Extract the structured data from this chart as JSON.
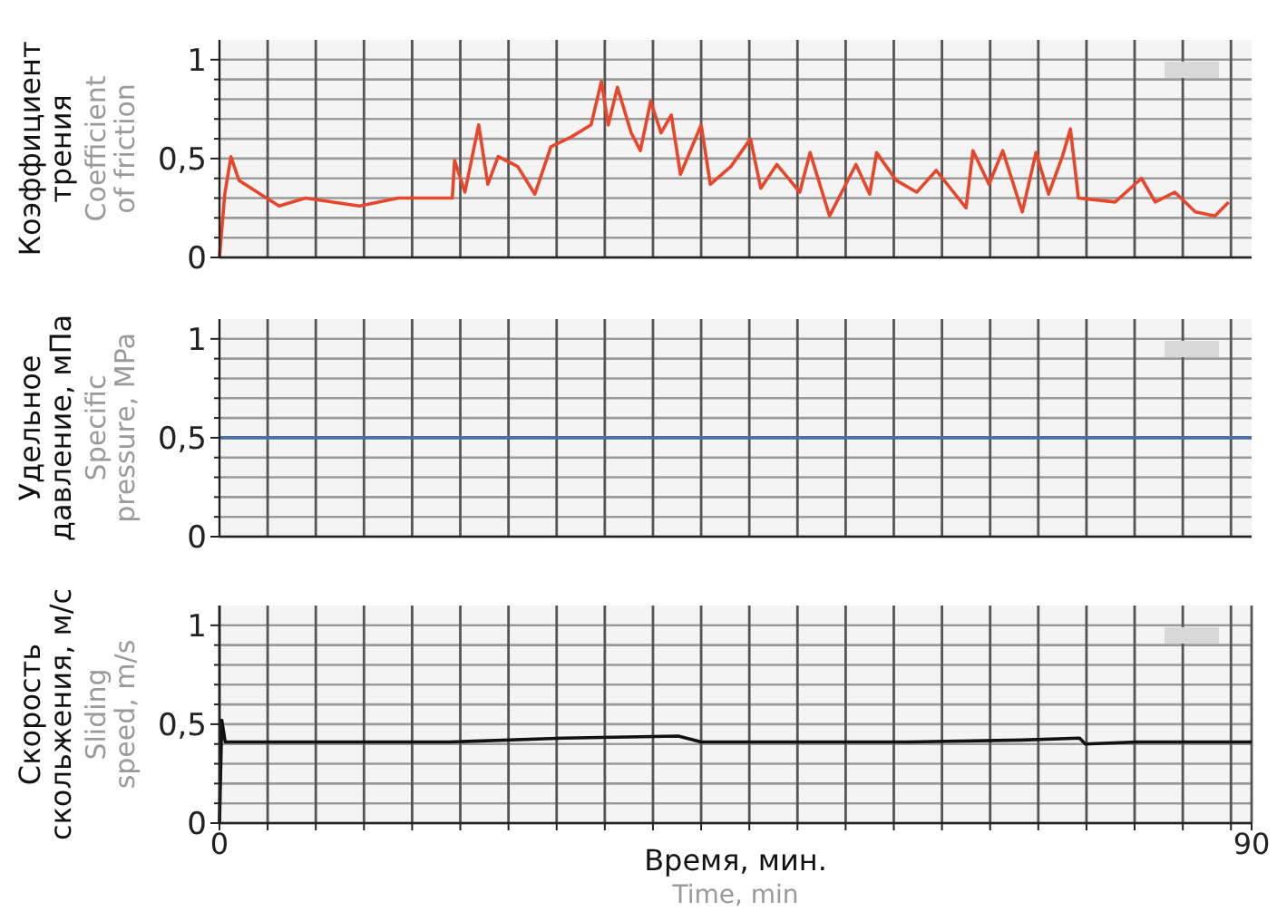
{
  "chart_data": [
    {
      "type": "line",
      "ylabel": "Коэффициент трения",
      "annotations": [
        "Coefficient of friction"
      ],
      "xlim": [
        0,
        90
      ],
      "ylim": [
        0,
        1.1
      ],
      "tick_labels": "y",
      "grid": true,
      "xticks": [
        {
          "value": 4.2,
          "label": null
        },
        {
          "value": 8.4,
          "label": null
        },
        {
          "value": 12.6,
          "label": null
        },
        {
          "value": 16.8,
          "label": null
        },
        {
          "value": 21,
          "label": null
        },
        {
          "value": 25.2,
          "label": null
        },
        {
          "value": 29.4,
          "label": null
        },
        {
          "value": 33.6,
          "label": null
        },
        {
          "value": 37.8,
          "label": null
        },
        {
          "value": 42,
          "label": null
        },
        {
          "value": 46.2,
          "label": null
        },
        {
          "value": 50.4,
          "label": null
        },
        {
          "value": 54.6,
          "label": null
        },
        {
          "value": 58.8,
          "label": null
        },
        {
          "value": 63,
          "label": null
        },
        {
          "value": 67.2,
          "label": null
        },
        {
          "value": 71.4,
          "label": null
        },
        {
          "value": 75.6,
          "label": null
        },
        {
          "value": 79.8,
          "label": null
        },
        {
          "value": 84,
          "label": null
        },
        {
          "value": 88.2,
          "label": null
        }
      ],
      "yticks": [
        {
          "value": 0,
          "label": "0"
        },
        {
          "value": 0.1,
          "label": null
        },
        {
          "value": 0.2,
          "label": null
        },
        {
          "value": 0.3,
          "label": null
        },
        {
          "value": 0.4,
          "label": null
        },
        {
          "value": 0.5,
          "label": "0,5"
        },
        {
          "value": 0.6,
          "label": null
        },
        {
          "value": 0.7,
          "label": null
        },
        {
          "value": 0.8,
          "label": null
        },
        {
          "value": 0.9,
          "label": null
        },
        {
          "value": 1,
          "label": "1"
        }
      ],
      "series": [
        {
          "color": "#e8462a",
          "x": [
            0,
            0.46,
            1.0,
            1.7,
            4.1,
            5.2,
            7.5,
            12.2,
            15.6,
            20.3,
            20.5,
            21.4,
            22.6,
            23.4,
            24.3,
            26.0,
            27.5,
            28.9,
            30.7,
            32.4,
            33.3,
            33.9,
            34.7,
            35.9,
            36.7,
            37.6,
            38.5,
            39.4,
            40.2,
            42.0,
            42.8,
            44.6,
            46.3,
            47.2,
            48.6,
            50.6,
            51.5,
            53.2,
            55.5,
            56.7,
            57.3,
            59.0,
            60.8,
            62.5,
            65.1,
            65.7,
            67.1,
            68.3,
            70.0,
            71.2,
            72.3,
            73.5,
            74.2,
            74.9,
            78.1,
            80.4,
            81.6,
            83.3,
            85.1,
            86.8,
            88.0
          ],
          "values": [
            0,
            0.32,
            0.51,
            0.39,
            0.3,
            0.26,
            0.3,
            0.26,
            0.3,
            0.3,
            0.49,
            0.33,
            0.67,
            0.37,
            0.51,
            0.46,
            0.32,
            0.56,
            0.61,
            0.67,
            0.89,
            0.67,
            0.86,
            0.63,
            0.54,
            0.79,
            0.63,
            0.72,
            0.42,
            0.67,
            0.37,
            0.46,
            0.6,
            0.35,
            0.47,
            0.33,
            0.53,
            0.21,
            0.47,
            0.32,
            0.53,
            0.39,
            0.33,
            0.44,
            0.25,
            0.54,
            0.37,
            0.54,
            0.23,
            0.53,
            0.32,
            0.51,
            0.65,
            0.3,
            0.28,
            0.4,
            0.28,
            0.33,
            0.23,
            0.21,
            0.28
          ]
        }
      ]
    },
    {
      "type": "line",
      "ylabel": "Удельное давление, мПа",
      "annotations": [
        "Specific pressure, MPa"
      ],
      "xlim": [
        0,
        90
      ],
      "ylim": [
        0,
        1.1
      ],
      "tick_labels": "y",
      "grid": true,
      "xticks": [
        {
          "value": 4.2,
          "label": null
        },
        {
          "value": 8.4,
          "label": null
        },
        {
          "value": 12.6,
          "label": null
        },
        {
          "value": 16.8,
          "label": null
        },
        {
          "value": 21,
          "label": null
        },
        {
          "value": 25.2,
          "label": null
        },
        {
          "value": 29.4,
          "label": null
        },
        {
          "value": 33.6,
          "label": null
        },
        {
          "value": 37.8,
          "label": null
        },
        {
          "value": 42,
          "label": null
        },
        {
          "value": 46.2,
          "label": null
        },
        {
          "value": 50.4,
          "label": null
        },
        {
          "value": 54.6,
          "label": null
        },
        {
          "value": 58.8,
          "label": null
        },
        {
          "value": 63,
          "label": null
        },
        {
          "value": 67.2,
          "label": null
        },
        {
          "value": 71.4,
          "label": null
        },
        {
          "value": 75.6,
          "label": null
        },
        {
          "value": 79.8,
          "label": null
        },
        {
          "value": 84,
          "label": null
        },
        {
          "value": 88.2,
          "label": null
        }
      ],
      "yticks": [
        {
          "value": 0,
          "label": "0"
        },
        {
          "value": 0.1,
          "label": null
        },
        {
          "value": 0.2,
          "label": null
        },
        {
          "value": 0.3,
          "label": null
        },
        {
          "value": 0.4,
          "label": null
        },
        {
          "value": 0.5,
          "label": "0,5"
        },
        {
          "value": 0.6,
          "label": null
        },
        {
          "value": 0.7,
          "label": null
        },
        {
          "value": 0.8,
          "label": null
        },
        {
          "value": 0.9,
          "label": null
        },
        {
          "value": 1,
          "label": "1"
        }
      ],
      "series": [
        {
          "color": "#4a6fa5",
          "x": [
            0,
            90
          ],
          "values": [
            0.5,
            0.5
          ]
        }
      ]
    },
    {
      "type": "line",
      "ylabel": "Скорость скольжения, м/с",
      "xlabel": "Время, мин.",
      "annotations": [
        "Sliding speed, m/s",
        "Time, min"
      ],
      "xlim": [
        0,
        90
      ],
      "ylim": [
        0,
        1.1
      ],
      "grid": true,
      "xticks": [
        0,
        {
          "value": 4.2,
          "label": null
        },
        {
          "value": 8.4,
          "label": null
        },
        {
          "value": 12.6,
          "label": null
        },
        {
          "value": 16.8,
          "label": null
        },
        {
          "value": 21,
          "label": null
        },
        {
          "value": 25.2,
          "label": null
        },
        {
          "value": 29.4,
          "label": null
        },
        {
          "value": 33.6,
          "label": null
        },
        {
          "value": 37.8,
          "label": null
        },
        {
          "value": 42,
          "label": null
        },
        {
          "value": 46.2,
          "label": null
        },
        {
          "value": 50.4,
          "label": null
        },
        {
          "value": 54.6,
          "label": null
        },
        {
          "value": 58.8,
          "label": null
        },
        {
          "value": 63,
          "label": null
        },
        {
          "value": 67.2,
          "label": null
        },
        {
          "value": 71.4,
          "label": null
        },
        {
          "value": 75.6,
          "label": null
        },
        {
          "value": 79.8,
          "label": null
        },
        {
          "value": 84,
          "label": null
        },
        {
          "value": 88.2,
          "label": null
        },
        90
      ],
      "yticks": [
        {
          "value": 0,
          "label": "0"
        },
        {
          "value": 0.1,
          "label": null
        },
        {
          "value": 0.2,
          "label": null
        },
        {
          "value": 0.3,
          "label": null
        },
        {
          "value": 0.4,
          "label": null
        },
        {
          "value": 0.5,
          "label": "0,5"
        },
        {
          "value": 0.6,
          "label": null
        },
        {
          "value": 0.7,
          "label": null
        },
        {
          "value": 0.8,
          "label": null
        },
        {
          "value": 0.9,
          "label": null
        },
        {
          "value": 1,
          "label": "1"
        }
      ],
      "series": [
        {
          "color": "#111111",
          "x": [
            0,
            0.2,
            0.5,
            10,
            20,
            30,
            40,
            42,
            50,
            60,
            70,
            75,
            75.5,
            80,
            90
          ],
          "values": [
            0,
            0.52,
            0.41,
            0.41,
            0.41,
            0.43,
            0.44,
            0.41,
            0.41,
            0.41,
            0.42,
            0.43,
            0.4,
            0.41,
            0.41
          ]
        }
      ]
    }
  ]
}
